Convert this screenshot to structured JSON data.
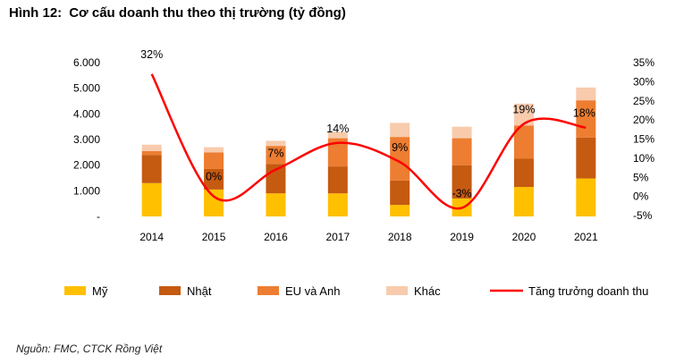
{
  "figure": {
    "number": "Hình 12:",
    "title": "Cơ cấu doanh thu theo thị trường (tỷ đồng)",
    "source": "Nguồn:  FMC, CTCK Rồng Việt"
  },
  "chart_data": {
    "type": "bar",
    "stacked": true,
    "categories": [
      "2014",
      "2015",
      "2016",
      "2017",
      "2018",
      "2019",
      "2020",
      "2021"
    ],
    "series": [
      {
        "name": "Mỹ",
        "color": "#ffc000",
        "values": [
          1300,
          1050,
          900,
          900,
          450,
          700,
          1150,
          1480
        ]
      },
      {
        "name": "Nhật",
        "color": "#c55a11",
        "values": [
          1100,
          800,
          1150,
          1050,
          950,
          1300,
          1100,
          1600
        ]
      },
      {
        "name": "EU và Anh",
        "color": "#ed7d31",
        "values": [
          150,
          650,
          700,
          1100,
          1700,
          1050,
          1300,
          1450
        ]
      },
      {
        "name": "Khác",
        "color": "#f8cbad",
        "values": [
          250,
          200,
          200,
          250,
          550,
          450,
          850,
          500
        ]
      }
    ],
    "line": {
      "name": "Tăng trưởng doanh thu",
      "color": "#ff0000",
      "values": [
        32,
        0,
        7,
        14,
        9,
        -3,
        19,
        18
      ],
      "labels": [
        "32%",
        "0%",
        "7%",
        "14%",
        "9%",
        "-3%",
        "19%",
        "18%"
      ]
    },
    "y_left": {
      "min": 0,
      "max": 6000,
      "step": 1000,
      "tick_labels": [
        "-",
        "1.000",
        "2.000",
        "3.000",
        "4.000",
        "5.000",
        "6.000"
      ]
    },
    "y_right": {
      "min": -5,
      "max": 35,
      "step": 5,
      "tick_labels": [
        "-5%",
        "0%",
        "5%",
        "10%",
        "15%",
        "20%",
        "25%",
        "30%",
        "35%"
      ]
    },
    "legend_position": "bottom",
    "grid": false
  }
}
